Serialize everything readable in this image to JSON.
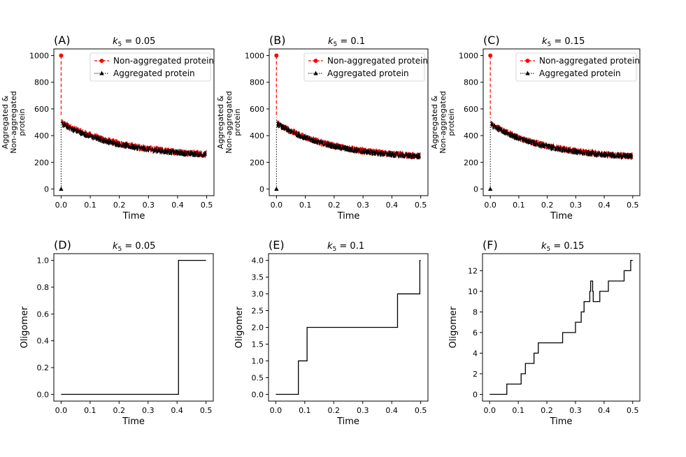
{
  "figure": {
    "background": "#ffffff"
  },
  "colors": {
    "non_aggregated": "#ff0000",
    "aggregated": "#000000",
    "step": "#000000",
    "axis": "#000000"
  },
  "chart_data": [
    {
      "id": "A",
      "letter": "(A)",
      "title_param": "k",
      "title_sub": "5",
      "title_value": " = 0.05",
      "type": "line",
      "xlabel": "Time",
      "ylabel_lines": [
        "Aggregated &",
        "Non-aggregated",
        "protein"
      ],
      "xlim": [
        -0.025,
        0.525
      ],
      "ylim": [
        -50,
        1050
      ],
      "xticks": [
        0.0,
        0.1,
        0.2,
        0.3,
        0.4,
        0.5
      ],
      "xtick_labels": [
        "0.0",
        "0.1",
        "0.2",
        "0.3",
        "0.4",
        "0.5"
      ],
      "yticks": [
        0,
        200,
        400,
        600,
        800,
        1000
      ],
      "ytick_labels": [
        "0",
        "200",
        "400",
        "600",
        "800",
        "1000"
      ],
      "legend": [
        "Non-aggregated protein",
        "Aggregated protein"
      ],
      "legend_position": "top-right",
      "series": [
        {
          "name": "Non-aggregated protein",
          "start": [
            0,
            1000
          ],
          "decay": {
            "initial": 500,
            "final": 235,
            "tau": 0.22,
            "noise": 28
          }
        },
        {
          "name": "Aggregated protein",
          "start": [
            0,
            0
          ],
          "decay": {
            "initial": 490,
            "final": 230,
            "tau": 0.22,
            "noise": 25
          }
        }
      ]
    },
    {
      "id": "B",
      "letter": "(B)",
      "title_param": "k",
      "title_sub": "5",
      "title_value": " = 0.1",
      "type": "line",
      "xlabel": "Time",
      "ylabel_lines": [
        "Aggregated &",
        "Non-aggregated",
        "protein"
      ],
      "xlim": [
        -0.025,
        0.525
      ],
      "ylim": [
        -50,
        1050
      ],
      "xticks": [
        0.0,
        0.1,
        0.2,
        0.3,
        0.4,
        0.5
      ],
      "xtick_labels": [
        "0.0",
        "0.1",
        "0.2",
        "0.3",
        "0.4",
        "0.5"
      ],
      "yticks": [
        0,
        200,
        400,
        600,
        800,
        1000
      ],
      "ytick_labels": [
        "0",
        "200",
        "400",
        "600",
        "800",
        "1000"
      ],
      "legend": [
        "Non-aggregated protein",
        "Aggregated protein"
      ],
      "legend_position": "top-right",
      "series": [
        {
          "name": "Non-aggregated protein",
          "start": [
            0,
            1000
          ],
          "decay": {
            "initial": 495,
            "final": 225,
            "tau": 0.2,
            "noise": 28
          }
        },
        {
          "name": "Aggregated protein",
          "start": [
            0,
            0
          ],
          "decay": {
            "initial": 490,
            "final": 222,
            "tau": 0.2,
            "noise": 25
          }
        }
      ]
    },
    {
      "id": "C",
      "letter": "(C)",
      "title_param": "k",
      "title_sub": "5",
      "title_value": " = 0.15",
      "type": "line",
      "xlabel": "Time",
      "ylabel_lines": [
        "Aggregated &",
        "Non-aggregated",
        "protein"
      ],
      "xlim": [
        -0.025,
        0.525
      ],
      "ylim": [
        -50,
        1050
      ],
      "xticks": [
        0.0,
        0.1,
        0.2,
        0.3,
        0.4,
        0.5
      ],
      "xtick_labels": [
        "0.0",
        "0.1",
        "0.2",
        "0.3",
        "0.4",
        "0.5"
      ],
      "yticks": [
        0,
        200,
        400,
        600,
        800,
        1000
      ],
      "ytick_labels": [
        "0",
        "200",
        "400",
        "600",
        "800",
        "1000"
      ],
      "legend": [
        "Non-aggregated protein",
        "Aggregated protein"
      ],
      "legend_position": "top-right",
      "series": [
        {
          "name": "Non-aggregated protein",
          "start": [
            0,
            1000
          ],
          "decay": {
            "initial": 490,
            "final": 225,
            "tau": 0.2,
            "noise": 28
          }
        },
        {
          "name": "Aggregated protein",
          "start": [
            0,
            0
          ],
          "decay": {
            "initial": 485,
            "final": 222,
            "tau": 0.2,
            "noise": 25
          }
        }
      ]
    },
    {
      "id": "D",
      "letter": "(D)",
      "title_param": "k",
      "title_sub": "5",
      "title_value": " = 0.05",
      "type": "step",
      "xlabel": "Time",
      "ylabel_lines": [
        "Oligomer"
      ],
      "xlim": [
        -0.025,
        0.525
      ],
      "ylim": [
        -0.05,
        1.05
      ],
      "xticks": [
        0.0,
        0.1,
        0.2,
        0.3,
        0.4,
        0.5
      ],
      "xtick_labels": [
        "0.0",
        "0.1",
        "0.2",
        "0.3",
        "0.4",
        "0.5"
      ],
      "yticks": [
        0.0,
        0.2,
        0.4,
        0.6,
        0.8,
        1.0
      ],
      "ytick_labels": [
        "0.0",
        "0.2",
        "0.4",
        "0.6",
        "0.8",
        "1.0"
      ],
      "steps": [
        [
          0.0,
          0
        ],
        [
          0.405,
          1
        ],
        [
          0.5,
          1
        ]
      ]
    },
    {
      "id": "E",
      "letter": "(E)",
      "title_param": "k",
      "title_sub": "5",
      "title_value": " = 0.1",
      "type": "step",
      "xlabel": "Time",
      "ylabel_lines": [
        "Oligomer"
      ],
      "xlim": [
        -0.025,
        0.525
      ],
      "ylim": [
        -0.2,
        4.2
      ],
      "xticks": [
        0.0,
        0.1,
        0.2,
        0.3,
        0.4,
        0.5
      ],
      "xtick_labels": [
        "0.0",
        "0.1",
        "0.2",
        "0.3",
        "0.4",
        "0.5"
      ],
      "yticks": [
        0.0,
        0.5,
        1.0,
        1.5,
        2.0,
        2.5,
        3.0,
        3.5,
        4.0
      ],
      "ytick_labels": [
        "0.0",
        "0.5",
        "1.0",
        "1.5",
        "2.0",
        "2.5",
        "3.0",
        "3.5",
        "4.0"
      ],
      "steps": [
        [
          0.0,
          0
        ],
        [
          0.078,
          1
        ],
        [
          0.108,
          2
        ],
        [
          0.42,
          3
        ],
        [
          0.497,
          4
        ],
        [
          0.5,
          4
        ]
      ]
    },
    {
      "id": "F",
      "letter": "(F)",
      "title_param": "k",
      "title_sub": "5",
      "title_value": " = 0.15",
      "type": "step",
      "xlabel": "Time",
      "ylabel_lines": [
        "Oligomer"
      ],
      "xlim": [
        -0.025,
        0.525
      ],
      "ylim": [
        -0.65,
        13.65
      ],
      "xticks": [
        0.0,
        0.1,
        0.2,
        0.3,
        0.4,
        0.5
      ],
      "xtick_labels": [
        "0.0",
        "0.1",
        "0.2",
        "0.3",
        "0.4",
        "0.5"
      ],
      "yticks": [
        0,
        2,
        4,
        6,
        8,
        10,
        12
      ],
      "ytick_labels": [
        "0",
        "2",
        "4",
        "6",
        "8",
        "10",
        "12"
      ],
      "steps": [
        [
          0.0,
          0
        ],
        [
          0.06,
          1
        ],
        [
          0.11,
          2
        ],
        [
          0.125,
          3
        ],
        [
          0.155,
          4
        ],
        [
          0.17,
          5
        ],
        [
          0.255,
          6
        ],
        [
          0.3,
          7
        ],
        [
          0.32,
          8
        ],
        [
          0.33,
          9
        ],
        [
          0.35,
          10
        ],
        [
          0.353,
          11
        ],
        [
          0.36,
          10
        ],
        [
          0.362,
          9
        ],
        [
          0.385,
          10
        ],
        [
          0.415,
          11
        ],
        [
          0.47,
          12
        ],
        [
          0.493,
          13
        ],
        [
          0.5,
          13
        ]
      ]
    }
  ]
}
